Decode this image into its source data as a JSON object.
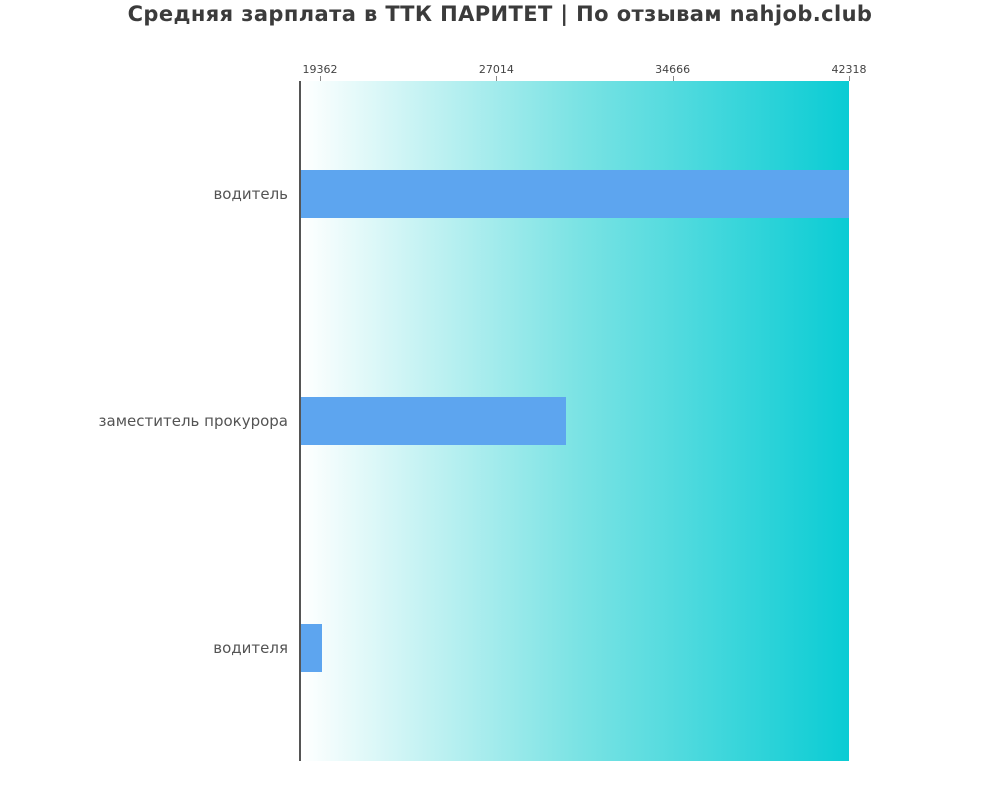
{
  "page": {
    "background": "#ffffff"
  },
  "chart_data": {
    "type": "bar",
    "orientation": "horizontal",
    "title": "Средняя зарплата в ТТК ПАРИТЕТ | По отзывам nahjob.club",
    "categories": [
      "водитель",
      "заместитель прокурора",
      "водителя"
    ],
    "values": [
      42318,
      30000,
      19362
    ],
    "x_ticks": [
      19362,
      27014,
      34666,
      42318
    ],
    "xlim": [
      18450,
      42318
    ],
    "grid": false,
    "legend": false,
    "colors": {
      "bar": "#5da5ef",
      "plot_gradient_left": "#ffffff",
      "plot_gradient_mid": "#7ce3e4",
      "plot_gradient_right": "#0accd4",
      "axis_spine": "#555555",
      "tick_mark": "#8a8a8a",
      "tick_label": "#444444",
      "category_label": "#545454",
      "title": "#3b3b3b"
    }
  }
}
